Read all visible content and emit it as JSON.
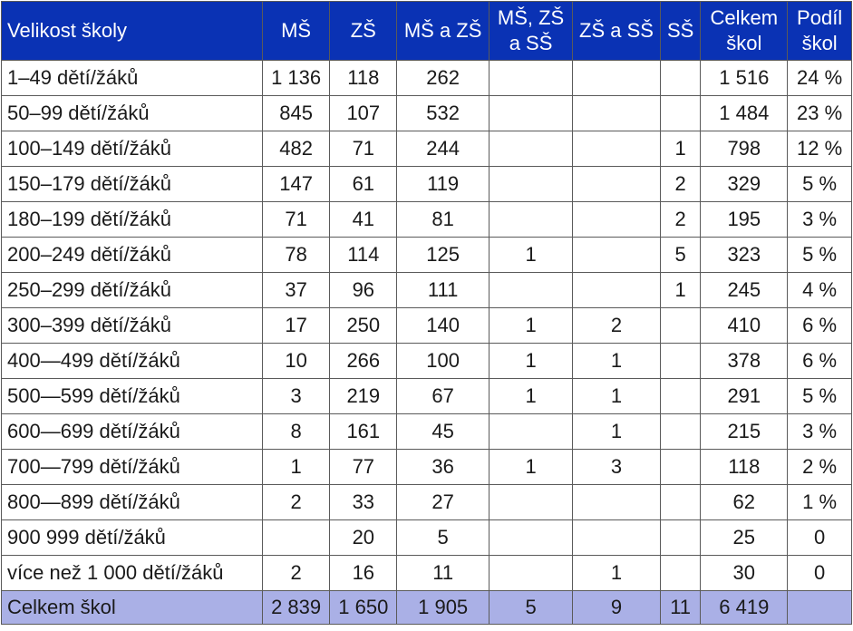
{
  "headers": [
    "Velikost školy",
    "MŠ",
    "ZŠ",
    "MŠ a ZŠ",
    "MŠ, ZŠ a SŠ",
    "ZŠ a SŠ",
    "SŠ",
    "Celkem škol",
    "Podíl škol"
  ],
  "rows": [
    [
      "1–49 dětí/žáků",
      "1 136",
      "118",
      "262",
      "",
      "",
      "",
      "1 516",
      "24 %"
    ],
    [
      "50–99 dětí/žáků",
      "845",
      "107",
      "532",
      "",
      "",
      "",
      "1 484",
      "23 %"
    ],
    [
      "100–149 dětí/žáků",
      "482",
      "71",
      "244",
      "",
      "",
      "1",
      "798",
      "12 %"
    ],
    [
      "150–179 dětí/žáků",
      "147",
      "61",
      "119",
      "",
      "",
      "2",
      "329",
      "5 %"
    ],
    [
      "180–199 dětí/žáků",
      "71",
      "41",
      "81",
      "",
      "",
      "2",
      "195",
      "3 %"
    ],
    [
      "200–249 dětí/žáků",
      "78",
      "114",
      "125",
      "1",
      "",
      "5",
      "323",
      "5 %"
    ],
    [
      "250–299 dětí/žáků",
      "37",
      "96",
      "111",
      "",
      "",
      "1",
      "245",
      "4 %"
    ],
    [
      "300–399 dětí/žáků",
      "17",
      "250",
      "140",
      "1",
      "2",
      "",
      "410",
      "6 %"
    ],
    [
      "400—499 dětí/žáků",
      "10",
      "266",
      "100",
      "1",
      "1",
      "",
      "378",
      "6 %"
    ],
    [
      "500—599 dětí/žáků",
      "3",
      "219",
      "67",
      "1",
      "1",
      "",
      "291",
      "5 %"
    ],
    [
      "600—699 dětí/žáků",
      "8",
      "161",
      "45",
      "",
      "1",
      "",
      "215",
      "3 %"
    ],
    [
      "700—799 dětí/žáků",
      "1",
      "77",
      "36",
      "1",
      "3",
      "",
      "118",
      "2 %"
    ],
    [
      "800—899 dětí/žáků",
      "2",
      "33",
      "27",
      "",
      "",
      "",
      "62",
      "1 %"
    ],
    [
      "900 999 dětí/žáků",
      "",
      "20",
      "5",
      "",
      "",
      "",
      "25",
      "0"
    ],
    [
      "více než 1 000 dětí/žáků",
      "2",
      "16",
      "11",
      "",
      "1",
      "",
      "30",
      "0"
    ]
  ],
  "total": [
    "Celkem škol",
    "2 839",
    "1 650",
    "1 905",
    "5",
    "9",
    "11",
    "6 419",
    ""
  ],
  "colors": {
    "header_bg": "#0a32b4",
    "header_text": "#ffffff",
    "total_bg": "#aab0e6",
    "border": "#5a5a5a"
  }
}
